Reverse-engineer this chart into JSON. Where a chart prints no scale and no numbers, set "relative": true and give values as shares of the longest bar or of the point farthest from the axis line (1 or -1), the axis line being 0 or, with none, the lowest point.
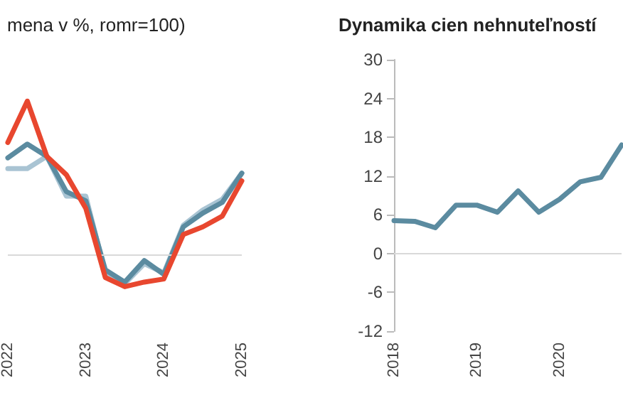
{
  "chart_data": [
    {
      "type": "line",
      "title": "mena v %, romr=100)",
      "relative": true,
      "tick_labels": "x",
      "marker": "none",
      "categories": [
        "2022",
        null,
        null,
        null,
        "2023",
        null,
        null,
        null,
        "2024",
        null,
        null,
        null,
        "2025"
      ],
      "ref_lines": [
        {
          "axis": "y",
          "value": 0,
          "color": "#d9d9d9"
        }
      ],
      "series": [
        {
          "color": "#a9c4d3",
          "values": [
            0.56,
            0.56,
            0.64,
            0.38,
            0.38,
            -0.12,
            -0.19,
            -0.06,
            -0.12,
            0.19,
            0.29,
            0.36,
            0.53
          ]
        },
        {
          "color": "#5b8ba0",
          "values": [
            0.63,
            0.72,
            0.64,
            0.41,
            0.35,
            -0.1,
            -0.18,
            -0.04,
            -0.13,
            0.18,
            0.27,
            0.34,
            0.53
          ]
        },
        {
          "color": "#e8472f",
          "values": [
            0.73,
            1,
            0.64,
            0.52,
            0.3,
            -0.15,
            -0.21,
            -0.18,
            -0.16,
            0.13,
            0.18,
            0.25,
            0.48
          ]
        }
      ]
    },
    {
      "type": "line",
      "title": "Dynamika cien nehnuteľností",
      "marker": "none",
      "categories": [
        "2018",
        null,
        null,
        null,
        "2019",
        null,
        null,
        null,
        "2020",
        null,
        null,
        null
      ],
      "ylim": [
        -12,
        30
      ],
      "yticks": [
        -12,
        -6,
        0,
        6,
        12,
        18,
        24,
        30
      ],
      "ref_lines": [
        {
          "axis": "y",
          "value": 0,
          "color": "#d9d9d9"
        }
      ],
      "series": [
        {
          "color": "#5b8ba0",
          "values": [
            5.1,
            5.0,
            4.0,
            7.5,
            7.5,
            6.4,
            9.7,
            6.4,
            8.4,
            11.1,
            11.8,
            16.8
          ]
        }
      ]
    }
  ]
}
